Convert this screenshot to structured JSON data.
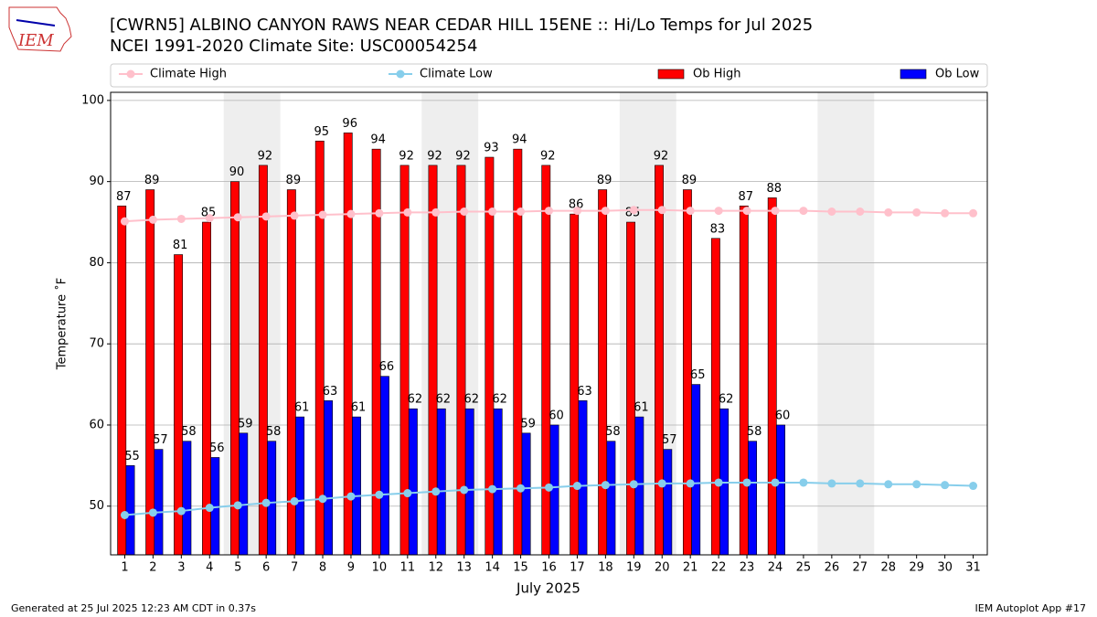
{
  "chart_data": {
    "type": "bar",
    "title": "[CWRN5] ALBINO CANYON RAWS NEAR CEDAR HILL 15ENE :: Hi/Lo Temps for Jul 2025",
    "subtitle": "NCEI 1991-2020 Climate Site: USC00054254",
    "logo_text": "IEM",
    "x_label": "July 2025",
    "y_label": "Temperature ˚F",
    "footer_left": "Generated at 25 Jul 2025 12:23 AM CDT in 0.37s",
    "footer_right": "IEM Autoplot App #17",
    "categories": [
      "1",
      "2",
      "3",
      "4",
      "5",
      "6",
      "7",
      "8",
      "9",
      "10",
      "11",
      "12",
      "13",
      "14",
      "15",
      "16",
      "17",
      "18",
      "19",
      "20",
      "21",
      "22",
      "23",
      "24",
      "25",
      "26",
      "27",
      "28",
      "29",
      "30",
      "31"
    ],
    "xlim": [
      0.5,
      31.5
    ],
    "shaded_spans": [
      [
        4.5,
        6.5
      ],
      [
        11.5,
        13.5
      ],
      [
        18.5,
        20.5
      ],
      [
        25.5,
        27.5
      ]
    ],
    "shade_color": "#eeeeee",
    "ylim": [
      44,
      101
    ],
    "yticks": [
      50,
      60,
      70,
      80,
      90,
      100
    ],
    "grid": true,
    "series": [
      {
        "name": "Climate High",
        "type": "line",
        "color": "#ffc0cb",
        "values": [
          85.1,
          85.3,
          85.4,
          85.5,
          85.6,
          85.7,
          85.8,
          85.9,
          86.0,
          86.1,
          86.2,
          86.2,
          86.3,
          86.3,
          86.3,
          86.4,
          86.4,
          86.4,
          86.5,
          86.5,
          86.4,
          86.4,
          86.4,
          86.4,
          86.4,
          86.3,
          86.3,
          86.2,
          86.2,
          86.1,
          86.1
        ]
      },
      {
        "name": "Climate Low",
        "type": "line",
        "color": "#87ceeb",
        "values": [
          48.9,
          49.2,
          49.4,
          49.8,
          50.1,
          50.4,
          50.6,
          50.9,
          51.2,
          51.4,
          51.6,
          51.8,
          52.0,
          52.1,
          52.2,
          52.3,
          52.5,
          52.6,
          52.7,
          52.8,
          52.8,
          52.9,
          52.9,
          52.9,
          52.9,
          52.8,
          52.8,
          52.7,
          52.7,
          52.6,
          52.5
        ]
      },
      {
        "name": "Ob High",
        "type": "bar",
        "color": "#ff0000",
        "values": [
          87,
          89,
          81,
          85,
          90,
          92,
          89,
          95,
          96,
          94,
          92,
          92,
          92,
          93,
          94,
          92,
          86,
          89,
          85,
          92,
          89,
          83,
          87,
          88,
          null,
          null,
          null,
          null,
          null,
          null,
          null
        ]
      },
      {
        "name": "Ob Low",
        "type": "bar",
        "color": "#0000ff",
        "values": [
          55,
          57,
          58,
          56,
          59,
          58,
          61,
          63,
          61,
          66,
          62,
          62,
          62,
          62,
          59,
          60,
          63,
          58,
          61,
          57,
          65,
          62,
          58,
          60,
          null,
          null,
          null,
          null,
          null,
          null,
          null
        ]
      }
    ]
  }
}
